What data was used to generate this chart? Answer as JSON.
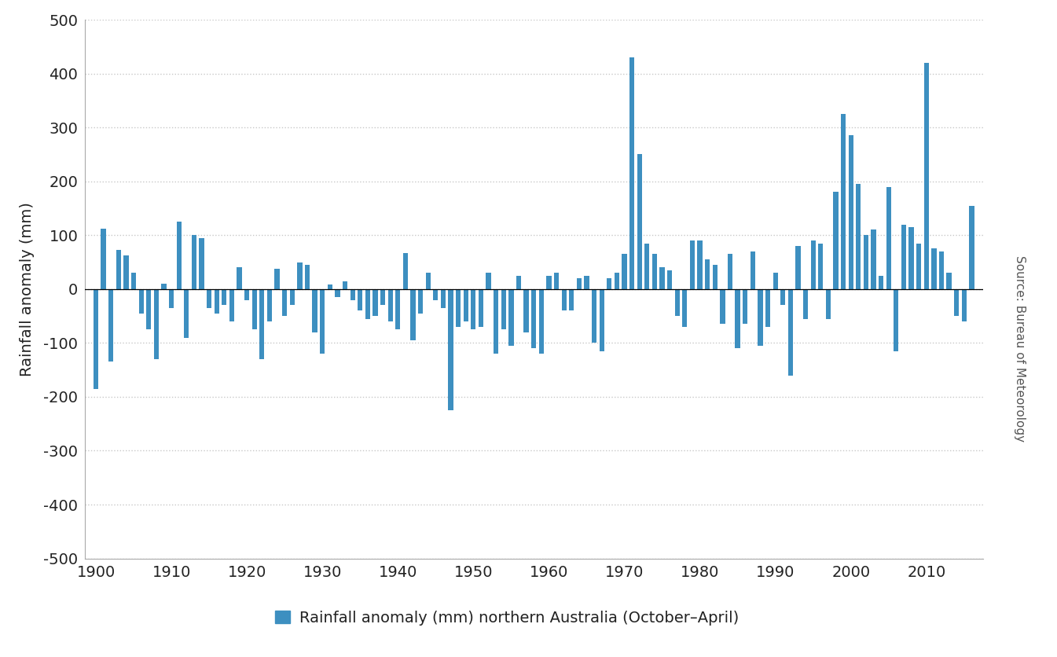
{
  "years": [
    1900,
    1901,
    1902,
    1903,
    1904,
    1905,
    1906,
    1907,
    1908,
    1909,
    1910,
    1911,
    1912,
    1913,
    1914,
    1915,
    1916,
    1917,
    1918,
    1919,
    1920,
    1921,
    1922,
    1923,
    1924,
    1925,
    1926,
    1927,
    1928,
    1929,
    1930,
    1931,
    1932,
    1933,
    1934,
    1935,
    1936,
    1937,
    1938,
    1939,
    1940,
    1941,
    1942,
    1943,
    1944,
    1945,
    1946,
    1947,
    1948,
    1949,
    1950,
    1951,
    1952,
    1953,
    1954,
    1955,
    1956,
    1957,
    1958,
    1959,
    1960,
    1961,
    1962,
    1963,
    1964,
    1965,
    1966,
    1967,
    1968,
    1969,
    1970,
    1971,
    1972,
    1973,
    1974,
    1975,
    1976,
    1977,
    1978,
    1979,
    1980,
    1981,
    1982,
    1983,
    1984,
    1985,
    1986,
    1987,
    1988,
    1989,
    1990,
    1991,
    1992,
    1993,
    1994,
    1995,
    1996,
    1997,
    1998,
    1999,
    2000,
    2001,
    2002,
    2003,
    2004,
    2005,
    2006,
    2007,
    2008,
    2009,
    2010,
    2011,
    2012,
    2013,
    2014,
    2015,
    2016
  ],
  "values": [
    -185,
    112,
    -135,
    72,
    62,
    30,
    -45,
    -75,
    -130,
    10,
    -35,
    125,
    -90,
    100,
    95,
    -35,
    -45,
    -30,
    -60,
    40,
    -20,
    -75,
    -130,
    -60,
    38,
    -50,
    -30,
    50,
    45,
    -80,
    -120,
    8,
    -15,
    15,
    -20,
    -40,
    -55,
    -50,
    -30,
    -60,
    -75,
    67,
    -95,
    -45,
    30,
    -20,
    -35,
    -225,
    -70,
    -60,
    -75,
    -70,
    30,
    -120,
    -75,
    -105,
    25,
    -80,
    -110,
    -120,
    25,
    30,
    -40,
    -40,
    20,
    25,
    -100,
    -115,
    20,
    30,
    65,
    430,
    250,
    85,
    65,
    40,
    35,
    -50,
    -70,
    90,
    90,
    55,
    45,
    -65,
    65,
    -110,
    -65,
    70,
    -105,
    -70,
    30,
    -30,
    -160,
    80,
    -55,
    90,
    85,
    -55,
    180,
    325,
    285,
    195,
    100,
    110,
    25,
    190,
    -115,
    120,
    115,
    85,
    420,
    75,
    70,
    30,
    -50,
    -60,
    155
  ],
  "bar_color": "#3d8fc0",
  "background_color": "#ffffff",
  "plot_bg_color": "#ffffff",
  "grid_color": "#c8c8c8",
  "ylabel": "Rainfall anomaly (mm)",
  "ylim": [
    -500,
    500
  ],
  "yticks": [
    -500,
    -400,
    -300,
    -200,
    -100,
    0,
    100,
    200,
    300,
    400,
    500
  ],
  "xtick_step": 10,
  "legend_label": "Rainfall anomaly (mm) northern Australia (October–April)",
  "source_text": "Source: Bureau of Meteorology",
  "label_fontsize": 14,
  "tick_fontsize": 14,
  "legend_fontsize": 14,
  "source_fontsize": 11
}
